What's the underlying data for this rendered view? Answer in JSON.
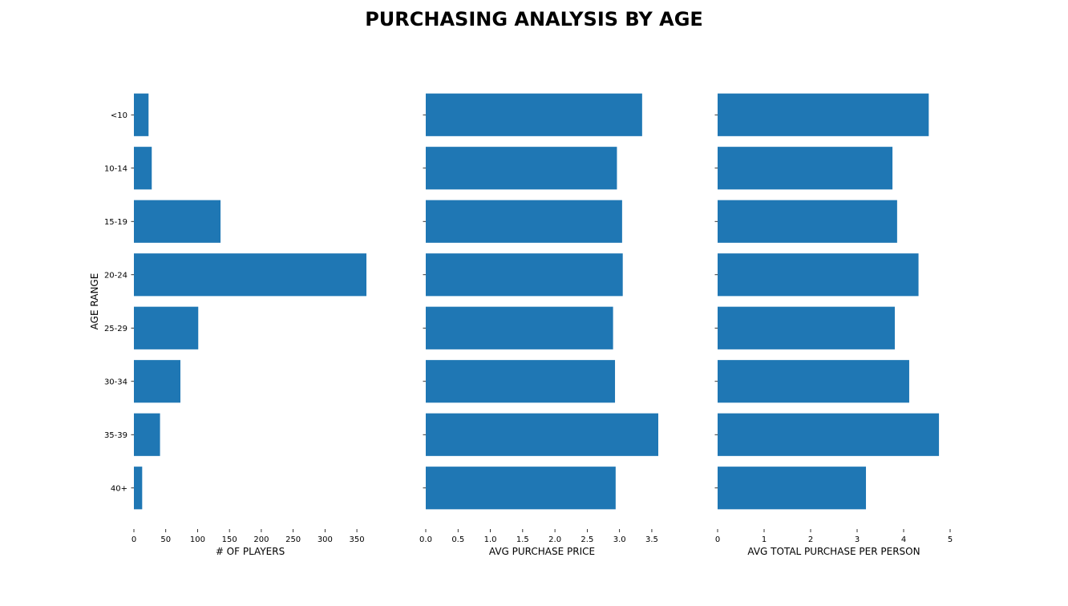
{
  "figure": {
    "title": "PURCHASING ANALYSIS BY AGE"
  },
  "chart_data": [
    {
      "type": "bar",
      "orientation": "horizontal",
      "categories": [
        "<10",
        "10-14",
        "15-19",
        "20-24",
        "25-29",
        "30-34",
        "35-39",
        "40+"
      ],
      "values": [
        23,
        28,
        136,
        365,
        101,
        73,
        41,
        13
      ],
      "xlabel": "# OF PLAYERS",
      "ylabel": "AGE RANGE",
      "xlim": [
        0,
        365
      ],
      "xticks": [
        0,
        50,
        100,
        150,
        200,
        250,
        300,
        350
      ],
      "xtick_labels": [
        "0",
        "50",
        "100",
        "150",
        "200",
        "250",
        "300",
        "350"
      ],
      "color": "#1f77b4",
      "grid": false
    },
    {
      "type": "bar",
      "orientation": "horizontal",
      "categories": [
        "<10",
        "10-14",
        "15-19",
        "20-24",
        "25-29",
        "30-34",
        "35-39",
        "40+"
      ],
      "values": [
        3.35,
        2.96,
        3.04,
        3.05,
        2.9,
        2.93,
        3.6,
        2.94
      ],
      "xlabel": "AVG PURCHASE PRICE",
      "xlim": [
        0,
        3.6
      ],
      "xticks": [
        0,
        0.5,
        1.0,
        1.5,
        2.0,
        2.5,
        3.0,
        3.5
      ],
      "xtick_labels": [
        "0.0",
        "0.5",
        "1.0",
        "1.5",
        "2.0",
        "2.5",
        "3.0",
        "3.5"
      ],
      "color": "#1f77b4",
      "grid": false
    },
    {
      "type": "bar",
      "orientation": "horizontal",
      "categories": [
        "<10",
        "10-14",
        "15-19",
        "20-24",
        "25-29",
        "30-34",
        "35-39",
        "40+"
      ],
      "values": [
        4.54,
        3.76,
        3.86,
        4.32,
        3.81,
        4.12,
        4.76,
        3.19
      ],
      "xlabel": "AVG TOTAL PURCHASE PER PERSON",
      "xlim": [
        0,
        5
      ],
      "xticks": [
        0,
        1,
        2,
        3,
        4,
        5
      ],
      "xtick_labels": [
        "0",
        "1",
        "2",
        "3",
        "4",
        "5"
      ],
      "color": "#1f77b4",
      "grid": false
    }
  ]
}
